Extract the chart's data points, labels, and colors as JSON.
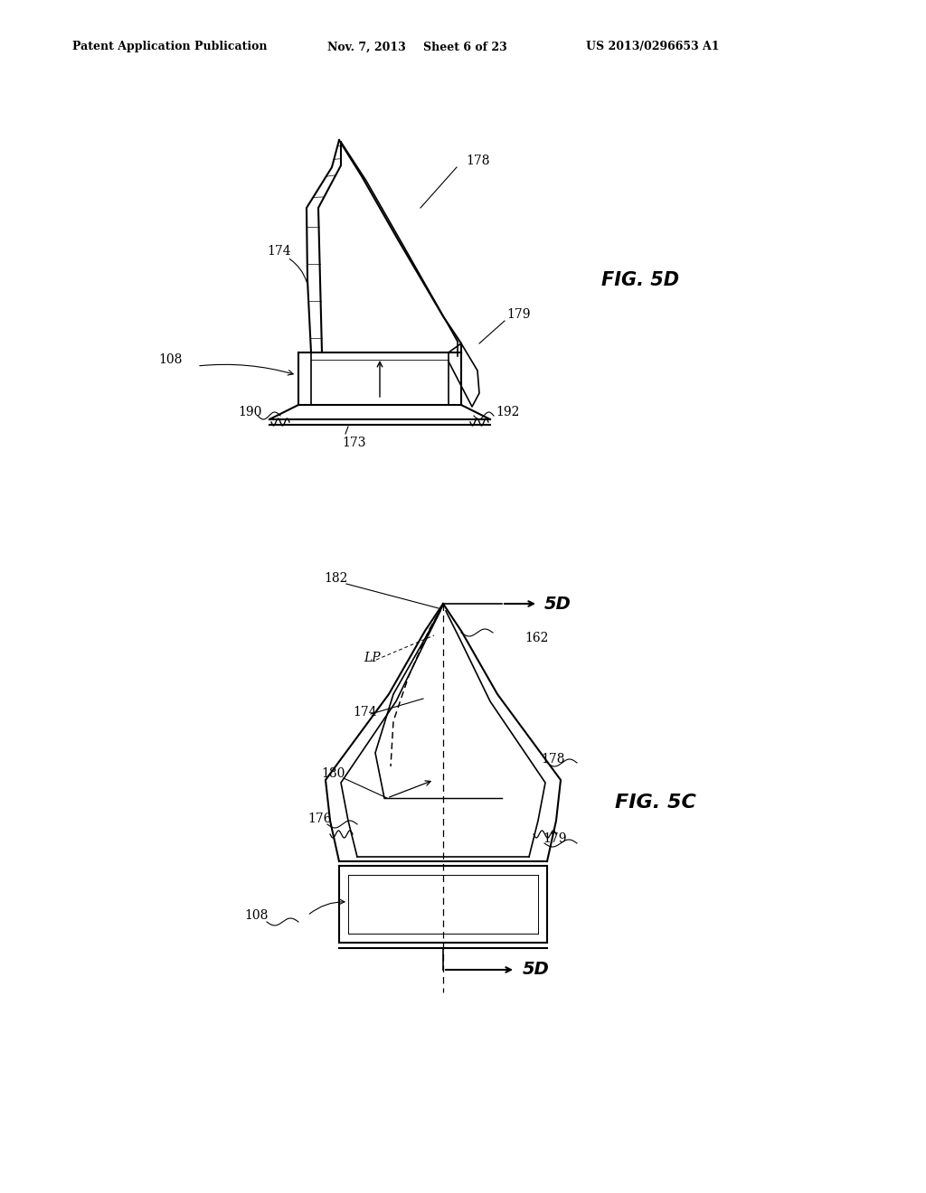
{
  "bg_color": "#ffffff",
  "header_text": "Patent Application Publication",
  "header_date": "Nov. 7, 2013",
  "header_sheet": "Sheet 6 of 23",
  "header_patent": "US 2013/0296653 A1",
  "fig5d_label": "FIG. 5D",
  "fig5c_label": "FIG. 5C",
  "line_color": "#000000",
  "line_width": 1.5,
  "annotation_fontsize": 10,
  "fig_label_fontsize": 14
}
